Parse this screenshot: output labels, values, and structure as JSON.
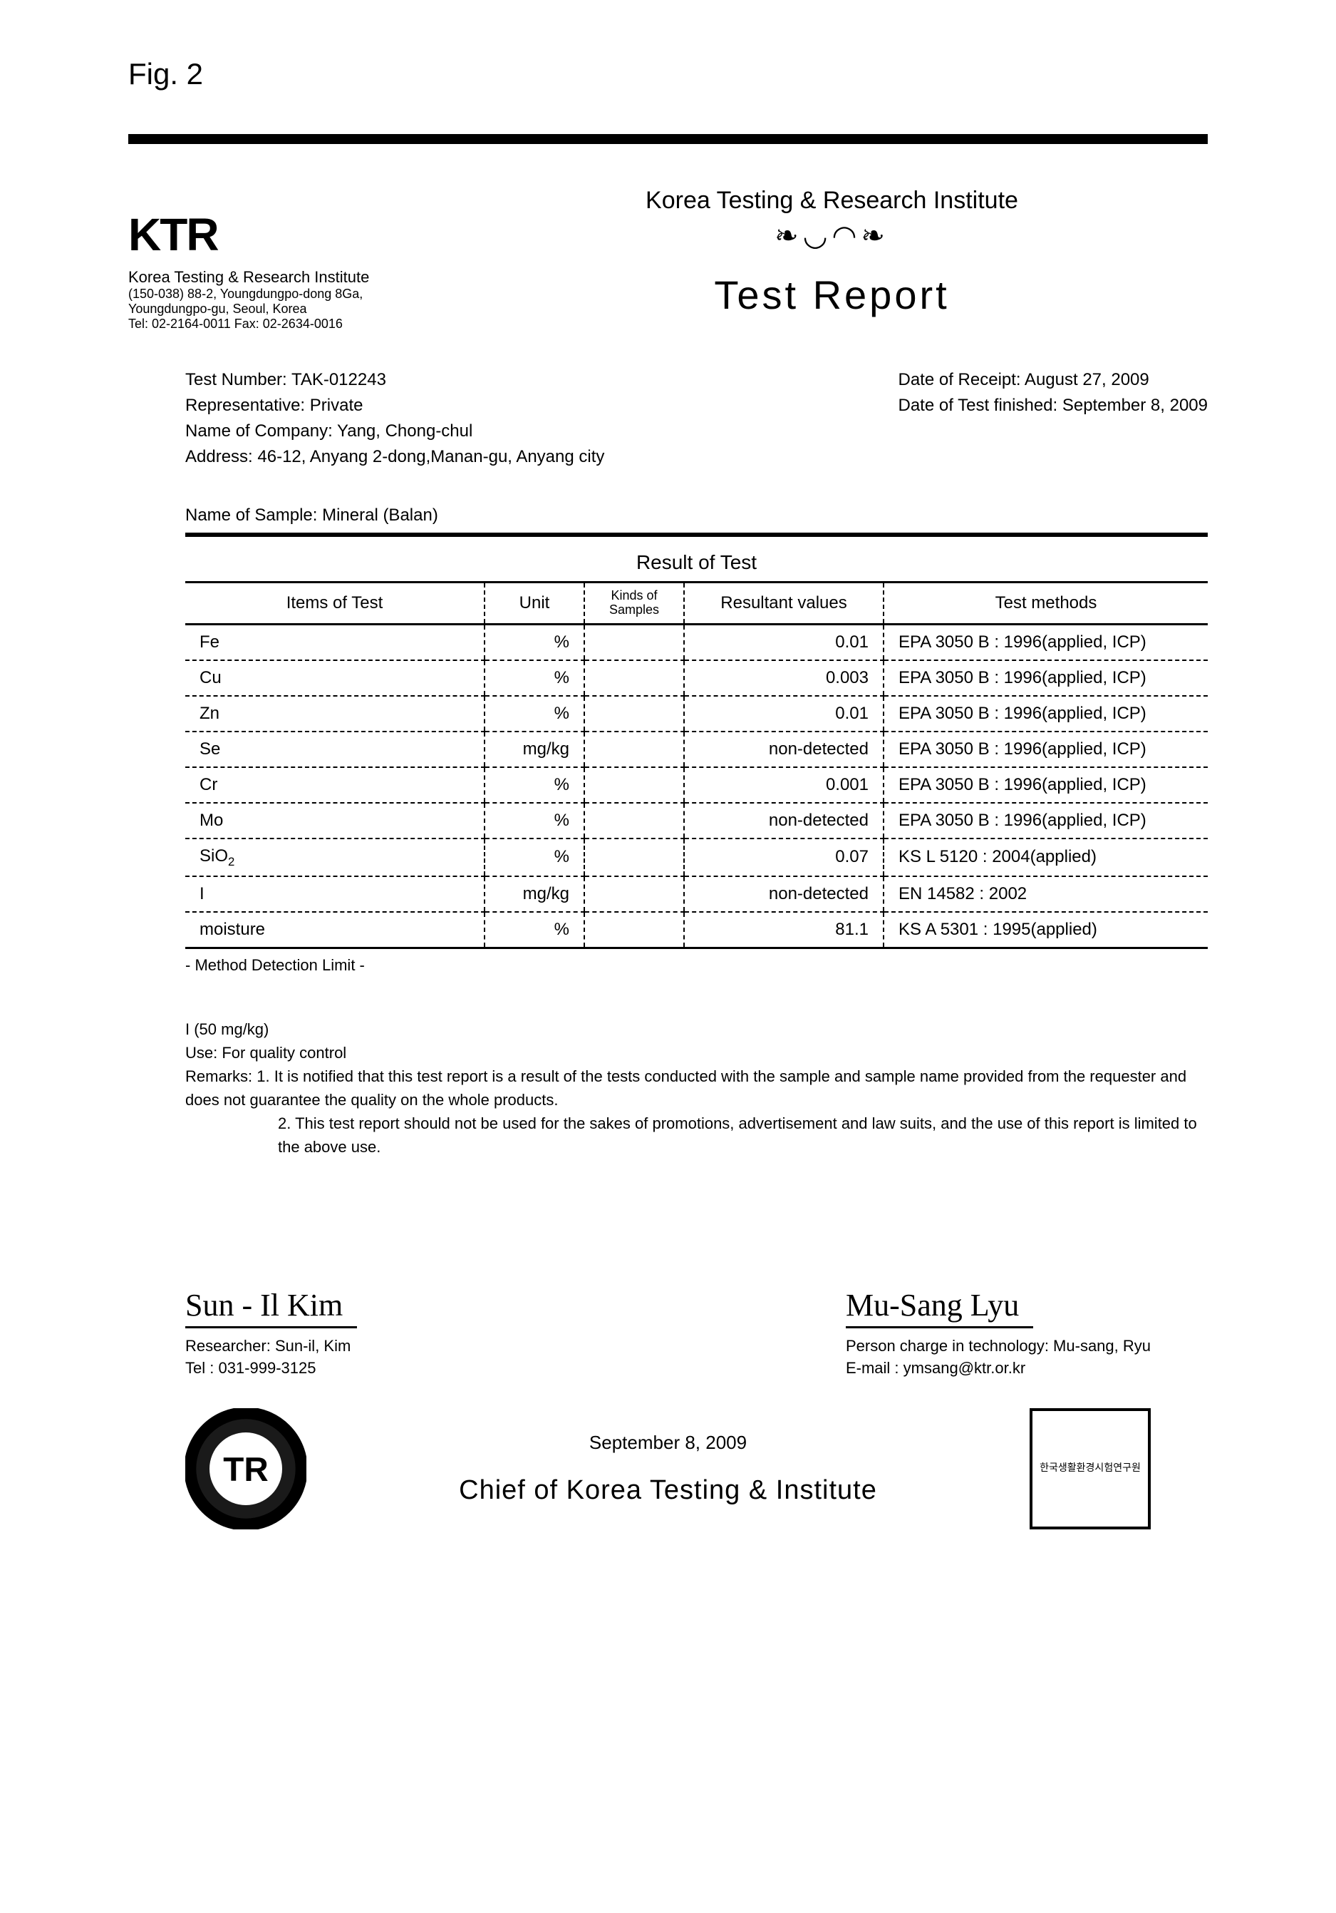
{
  "fig_label": "Fig. 2",
  "logo": {
    "mark": "KTR",
    "line1": "Korea Testing & Research Institute",
    "line2": "(150-038) 88-2, Youngdungpo-dong 8Ga,",
    "line3": "Youngdungpo-gu, Seoul, Korea",
    "line4": "Tel: 02-2164-0011 Fax: 02-2634-0016"
  },
  "header": {
    "institute": "Korea Testing & Research Institute",
    "title": "Test Report"
  },
  "meta_left": {
    "test_number": "Test Number: TAK-012243",
    "representative": "Representative: Private",
    "company": "Name of Company: Yang, Chong-chul",
    "address": "Address: 46-12, Anyang 2-dong,Manan-gu, Anyang city"
  },
  "meta_right": {
    "receipt": "Date of Receipt: August 27, 2009",
    "finished": "Date of Test finished: September 8, 2009"
  },
  "sample_line": "Name of Sample: Mineral (Balan)",
  "result_title": "Result of Test",
  "columns": {
    "items": "Items of Test",
    "unit": "Unit",
    "kinds": "Kinds of Samples",
    "values": "Resultant values",
    "methods": "Test methods"
  },
  "rows": [
    {
      "item": "Fe",
      "unit": "%",
      "kinds": "",
      "value": "0.01",
      "method": "EPA 3050 B : 1996(applied, ICP)"
    },
    {
      "item": "Cu",
      "unit": "%",
      "kinds": "",
      "value": "0.003",
      "method": "EPA 3050 B : 1996(applied, ICP)"
    },
    {
      "item": "Zn",
      "unit": "%",
      "kinds": "",
      "value": "0.01",
      "method": "EPA 3050 B : 1996(applied, ICP)"
    },
    {
      "item": "Se",
      "unit": "mg/kg",
      "kinds": "",
      "value": "non-detected",
      "method": "EPA 3050 B : 1996(applied, ICP)"
    },
    {
      "item": "Cr",
      "unit": "%",
      "kinds": "",
      "value": "0.001",
      "method": "EPA 3050 B : 1996(applied, ICP)"
    },
    {
      "item": "Mo",
      "unit": "%",
      "kinds": "",
      "value": "non-detected",
      "method": "EPA 3050 B : 1996(applied, ICP)"
    },
    {
      "item": "SiO2",
      "item_html": "SiO<sub>2</sub>",
      "unit": "%",
      "kinds": "",
      "value": "0.07",
      "method": "KS L 5120 : 2004(applied)"
    },
    {
      "item": "I",
      "unit": "mg/kg",
      "kinds": "",
      "value": "non-detected",
      "method": "EN 14582 : 2002"
    },
    {
      "item": "moisture",
      "unit": "%",
      "kinds": "",
      "value": "81.1",
      "method": "KS A 5301 : 1995(applied)"
    }
  ],
  "after_table": "- Method Detection Limit -",
  "notes": {
    "mdl_line": "I (50 mg/kg)",
    "use_line": "Use: For quality control",
    "remark1_label": "Remarks: 1.",
    "remark1": "It is notified that this test report is a result of the tests conducted with the sample and sample name provided from the requester and does not guarantee the quality on the whole products.",
    "remark2_label": "2.",
    "remark2": "This test report should not be used for the sakes of promotions, advertisement and law suits, and the use of this report is limited to the above use."
  },
  "sig_left": {
    "name": "Sun - Il   Kim",
    "role": "Researcher: Sun-il, Kim",
    "tel": "Tel : 031-999-3125"
  },
  "sig_right": {
    "name": "Mu-Sang  Lyu",
    "role": "Person charge in technology: Mu-sang, Ryu",
    "email": "E-mail : ymsang@ktr.or.kr"
  },
  "footer": {
    "date": "September 8, 2009",
    "chief": "Chief of Korea Testing & Institute",
    "seal_left_text": "TR",
    "seal_right_text": "한국생활환경시험연구원"
  },
  "style": {
    "colors": {
      "text": "#000000",
      "bg": "#ffffff",
      "rule": "#000000"
    },
    "fontsize": {
      "body": 24,
      "title": 56,
      "fig": 42,
      "table": 24,
      "sig": 44
    }
  }
}
